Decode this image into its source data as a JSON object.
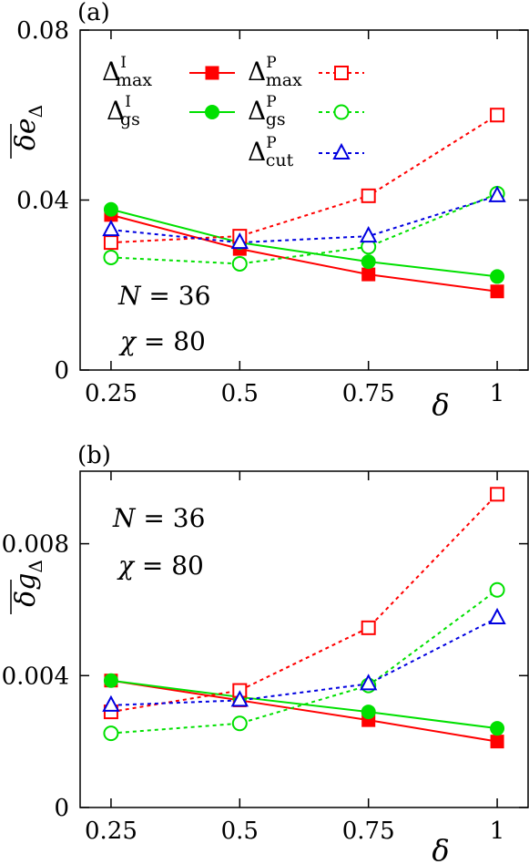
{
  "colors": {
    "red": "#ff0000",
    "green": "#00e000",
    "blue": "#0000e0",
    "axis": "#000000"
  },
  "chart_data": [
    {
      "panel_label": "(a)",
      "type": "line",
      "xlabel": "δ",
      "ylabel": "δe",
      "ylabel_sub": "Δ",
      "x": [
        0.25,
        0.5,
        0.75,
        1
      ],
      "xtick_labels": [
        "0.25",
        "0.5",
        "0.75",
        "1"
      ],
      "ylim": [
        0,
        0.08
      ],
      "yticks": [
        0,
        0.04,
        0.08
      ],
      "ytick_labels": [
        "0",
        "0.04",
        "0.08"
      ],
      "annotations": [
        {
          "var": "N",
          "eq": " = ",
          "val": "36"
        },
        {
          "var": "χ",
          "eq": " = ",
          "val": "80"
        }
      ],
      "legend_position": "top",
      "series": [
        {
          "name": "Δ",
          "sup": "I",
          "sub": "max",
          "color": "#ff0000",
          "marker": "square",
          "filled": true,
          "dashed": false,
          "values": [
            0.0365,
            0.0285,
            0.0225,
            0.0185
          ]
        },
        {
          "name": "Δ",
          "sup": "I",
          "sub": "gs",
          "color": "#00e000",
          "marker": "circle",
          "filled": true,
          "dashed": false,
          "values": [
            0.0378,
            0.03,
            0.0255,
            0.022
          ]
        },
        {
          "name": "Δ",
          "sup": "P",
          "sub": "max",
          "color": "#ff0000",
          "marker": "square",
          "filled": false,
          "dashed": true,
          "values": [
            0.03,
            0.0315,
            0.041,
            0.06
          ]
        },
        {
          "name": "Δ",
          "sup": "P",
          "sub": "gs",
          "color": "#00e000",
          "marker": "circle",
          "filled": false,
          "dashed": true,
          "values": [
            0.0265,
            0.025,
            0.029,
            0.0415
          ]
        },
        {
          "name": "Δ",
          "sup": "P",
          "sub": "cut",
          "color": "#0000e0",
          "marker": "triangle",
          "filled": false,
          "dashed": true,
          "values": [
            0.033,
            0.03,
            0.0315,
            0.041
          ]
        }
      ]
    },
    {
      "panel_label": "(b)",
      "type": "line",
      "xlabel": "δ",
      "ylabel": "δg",
      "ylabel_sub": "Δ",
      "x": [
        0.25,
        0.5,
        0.75,
        1
      ],
      "xtick_labels": [
        "0.25",
        "0.5",
        "0.75",
        "1"
      ],
      "ylim": [
        0,
        0.0102
      ],
      "yticks": [
        0,
        0.004,
        0.008
      ],
      "ytick_labels": [
        "0",
        "0.004",
        "0.008"
      ],
      "annotations": [
        {
          "var": "N",
          "eq": " = ",
          "val": "36"
        },
        {
          "var": "χ",
          "eq": " = ",
          "val": "80"
        }
      ],
      "series": [
        {
          "name": "Δ",
          "sup": "I",
          "sub": "max",
          "color": "#ff0000",
          "marker": "square",
          "filled": true,
          "dashed": false,
          "values": [
            0.00385,
            0.00325,
            0.00265,
            0.002
          ]
        },
        {
          "name": "Δ",
          "sup": "I",
          "sub": "gs",
          "color": "#00e000",
          "marker": "circle",
          "filled": true,
          "dashed": false,
          "values": [
            0.00385,
            0.00335,
            0.0029,
            0.0024
          ]
        },
        {
          "name": "Δ",
          "sup": "P",
          "sub": "max",
          "color": "#ff0000",
          "marker": "square",
          "filled": false,
          "dashed": true,
          "values": [
            0.0029,
            0.00355,
            0.00545,
            0.0095
          ]
        },
        {
          "name": "Δ",
          "sup": "P",
          "sub": "gs",
          "color": "#00e000",
          "marker": "circle",
          "filled": false,
          "dashed": true,
          "values": [
            0.00225,
            0.00255,
            0.0037,
            0.0066
          ]
        },
        {
          "name": "Δ",
          "sup": "P",
          "sub": "cut",
          "color": "#0000e0",
          "marker": "triangle",
          "filled": false,
          "dashed": true,
          "values": [
            0.0031,
            0.00325,
            0.00375,
            0.00575
          ]
        }
      ]
    }
  ]
}
